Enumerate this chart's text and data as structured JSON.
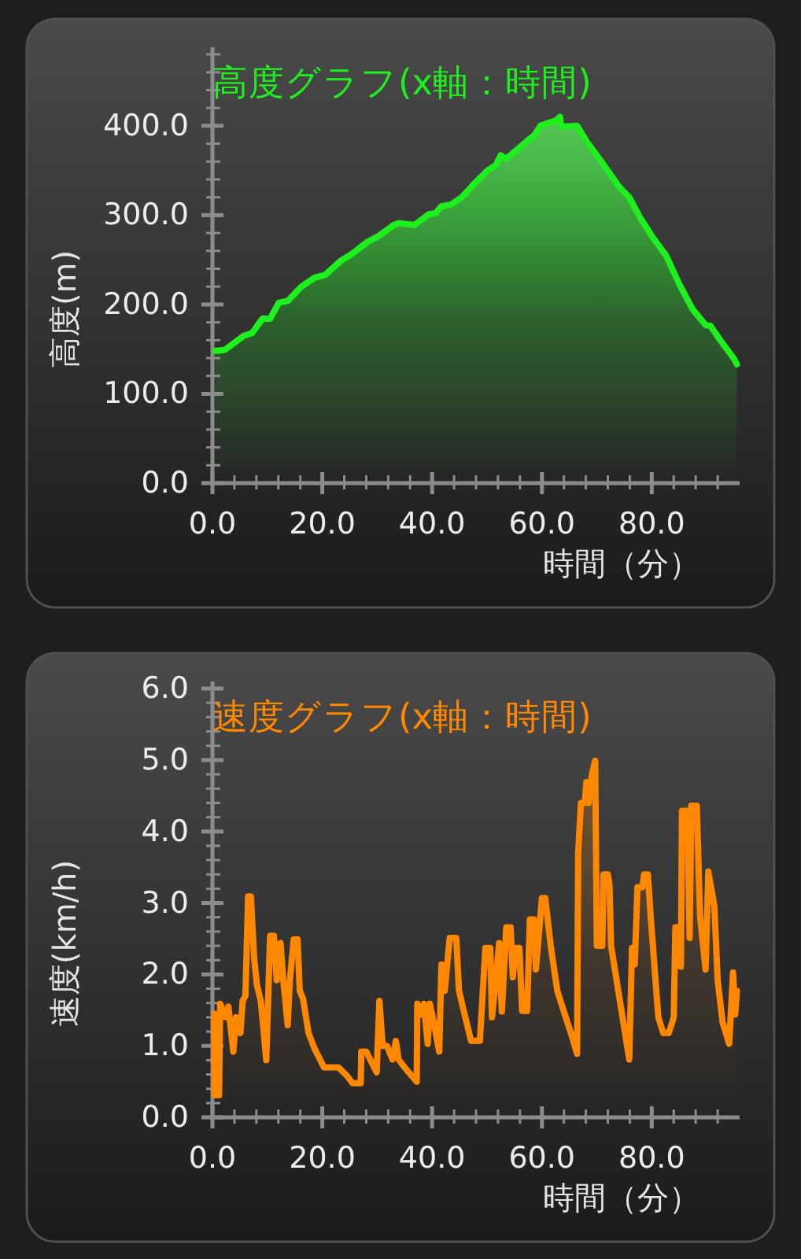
{
  "chart_data": [
    {
      "type": "area",
      "title": "高度グラフ(x軸：時間)",
      "xlabel": "時間（分）",
      "ylabel": "高度(m)",
      "xlim": [
        0,
        96
      ],
      "ylim": [
        0,
        488
      ],
      "xticks": [
        {
          "value": 0,
          "label": "0.0"
        },
        {
          "value": 4,
          "label": null
        },
        {
          "value": 8,
          "label": null
        },
        {
          "value": 12,
          "label": null
        },
        {
          "value": 16,
          "label": null
        },
        {
          "value": 20,
          "label": "20.0"
        },
        {
          "value": 24,
          "label": null
        },
        {
          "value": 28,
          "label": null
        },
        {
          "value": 32,
          "label": null
        },
        {
          "value": 36,
          "label": null
        },
        {
          "value": 40,
          "label": "40.0"
        },
        {
          "value": 44,
          "label": null
        },
        {
          "value": 48,
          "label": null
        },
        {
          "value": 52,
          "label": null
        },
        {
          "value": 56,
          "label": null
        },
        {
          "value": 60,
          "label": "60.0"
        },
        {
          "value": 64,
          "label": null
        },
        {
          "value": 68,
          "label": null
        },
        {
          "value": 72,
          "label": null
        },
        {
          "value": 76,
          "label": null
        },
        {
          "value": 80,
          "label": "80.0"
        },
        {
          "value": 84,
          "label": null
        },
        {
          "value": 88,
          "label": null
        },
        {
          "value": 92,
          "label": null
        }
      ],
      "yticks": [
        {
          "value": 0,
          "label": "0.0"
        },
        {
          "value": 20,
          "label": null
        },
        {
          "value": 40,
          "label": null
        },
        {
          "value": 60,
          "label": null
        },
        {
          "value": 80,
          "label": null
        },
        {
          "value": 100,
          "label": "100.0"
        },
        {
          "value": 120,
          "label": null
        },
        {
          "value": 140,
          "label": null
        },
        {
          "value": 160,
          "label": null
        },
        {
          "value": 180,
          "label": null
        },
        {
          "value": 200,
          "label": "200.0"
        },
        {
          "value": 220,
          "label": null
        },
        {
          "value": 240,
          "label": null
        },
        {
          "value": 260,
          "label": null
        },
        {
          "value": 280,
          "label": null
        },
        {
          "value": 300,
          "label": "300.0"
        },
        {
          "value": 320,
          "label": null
        },
        {
          "value": 340,
          "label": null
        },
        {
          "value": 360,
          "label": null
        },
        {
          "value": 380,
          "label": null
        },
        {
          "value": 400,
          "label": "400.0"
        },
        {
          "value": 420,
          "label": null
        },
        {
          "value": 440,
          "label": null
        },
        {
          "value": 460,
          "label": null
        },
        {
          "value": 480,
          "label": null
        }
      ],
      "x": [
        0.5,
        2.2,
        5.7,
        7.2,
        9.1,
        10.5,
        12.1,
        13.7,
        16.2,
        18.6,
        20.5,
        23.4,
        25.5,
        28.2,
        30.1,
        33.0,
        33.9,
        36.8,
        39.4,
        40.6,
        41.7,
        43.5,
        45.4,
        47.8,
        50.1,
        51.6,
        52.5,
        53.5,
        55.4,
        57.3,
        58.7,
        59.7,
        61.1,
        62.6,
        63.3,
        63.5,
        66.4,
        68.3,
        70.7,
        72.1,
        74.0,
        75.9,
        77.8,
        80.2,
        82.6,
        85.0,
        87.4,
        89.8,
        90.7,
        92.6,
        95.0,
        95.5
      ],
      "series": [
        {
          "color": "#1ef01e",
          "values": [
            148,
            149,
            165,
            168,
            184,
            184,
            202,
            204,
            220,
            230,
            233,
            249,
            257,
            270,
            276,
            289,
            291,
            289,
            301,
            302,
            310,
            312,
            320,
            336,
            350,
            356,
            367,
            363,
            373,
            383,
            390,
            400,
            403,
            406,
            410,
            399,
            400,
            381,
            361,
            349,
            332,
            320,
            298,
            275,
            255,
            223,
            195,
            177,
            176,
            159,
            139,
            133
          ]
        }
      ]
    },
    {
      "type": "area",
      "title": "速度グラフ(x軸：時間)",
      "xlabel": "時間（分）",
      "ylabel": "速度(km/h)",
      "xlim": [
        0,
        96
      ],
      "ylim": [
        0,
        6.1
      ],
      "xticks": [
        {
          "value": 0,
          "label": "0.0"
        },
        {
          "value": 4,
          "label": null
        },
        {
          "value": 8,
          "label": null
        },
        {
          "value": 12,
          "label": null
        },
        {
          "value": 16,
          "label": null
        },
        {
          "value": 20,
          "label": "20.0"
        },
        {
          "value": 24,
          "label": null
        },
        {
          "value": 28,
          "label": null
        },
        {
          "value": 32,
          "label": null
        },
        {
          "value": 36,
          "label": null
        },
        {
          "value": 40,
          "label": "40.0"
        },
        {
          "value": 44,
          "label": null
        },
        {
          "value": 48,
          "label": null
        },
        {
          "value": 52,
          "label": null
        },
        {
          "value": 56,
          "label": null
        },
        {
          "value": 60,
          "label": "60.0"
        },
        {
          "value": 64,
          "label": null
        },
        {
          "value": 68,
          "label": null
        },
        {
          "value": 72,
          "label": null
        },
        {
          "value": 76,
          "label": null
        },
        {
          "value": 80,
          "label": "80.0"
        },
        {
          "value": 84,
          "label": null
        },
        {
          "value": 88,
          "label": null
        },
        {
          "value": 92,
          "label": null
        }
      ],
      "yticks": [
        {
          "value": 0,
          "label": "0.0"
        },
        {
          "value": 0.2,
          "label": null
        },
        {
          "value": 0.4,
          "label": null
        },
        {
          "value": 0.6,
          "label": null
        },
        {
          "value": 0.8,
          "label": null
        },
        {
          "value": 1,
          "label": "1.0"
        },
        {
          "value": 1.2,
          "label": null
        },
        {
          "value": 1.4,
          "label": null
        },
        {
          "value": 1.6,
          "label": null
        },
        {
          "value": 1.8,
          "label": null
        },
        {
          "value": 2,
          "label": "2.0"
        },
        {
          "value": 2.2,
          "label": null
        },
        {
          "value": 2.4,
          "label": null
        },
        {
          "value": 2.6,
          "label": null
        },
        {
          "value": 2.8,
          "label": null
        },
        {
          "value": 3,
          "label": "3.0"
        },
        {
          "value": 3.2,
          "label": null
        },
        {
          "value": 3.4,
          "label": null
        },
        {
          "value": 3.6,
          "label": null
        },
        {
          "value": 3.8,
          "label": null
        },
        {
          "value": 4,
          "label": "4.0"
        },
        {
          "value": 4.2,
          "label": null
        },
        {
          "value": 4.4,
          "label": null
        },
        {
          "value": 4.6,
          "label": null
        },
        {
          "value": 4.8,
          "label": null
        },
        {
          "value": 5,
          "label": "5.0"
        },
        {
          "value": 5.2,
          "label": null
        },
        {
          "value": 5.4,
          "label": null
        },
        {
          "value": 5.6,
          "label": null
        },
        {
          "value": 5.8,
          "label": null
        },
        {
          "value": 6,
          "label": "6.0"
        }
      ],
      "x": [
        0.3,
        0.4,
        1.2,
        1.4,
        2.4,
        2.9,
        3.8,
        4.3,
        5.1,
        5.5,
        6.0,
        6.5,
        7.0,
        7.6,
        8.1,
        8.8,
        9.8,
        10.5,
        11.2,
        11.7,
        12.4,
        12.9,
        13.7,
        14.1,
        14.8,
        15.5,
        15.9,
        16.5,
        17.5,
        18.6,
        20.3,
        22.9,
        24.4,
        25.5,
        27.0,
        27.1,
        28.0,
        29.9,
        30.4,
        31.0,
        31.8,
        32.8,
        33.4,
        33.9,
        35.3,
        37.2,
        37.3,
        37.9,
        38.5,
        39.2,
        39.6,
        40.4,
        41.3,
        41.7,
        42.3,
        43.2,
        44.4,
        44.9,
        45.8,
        47.1,
        48.7,
        49.7,
        50.6,
        50.9,
        51.6,
        52.2,
        52.7,
        53.5,
        54.3,
        54.7,
        55.2,
        55.9,
        56.4,
        57.3,
        57.8,
        58.5,
        58.9,
        60.0,
        60.6,
        61.6,
        62.8,
        64.0,
        65.4,
        66.4,
        66.6,
        67.1,
        67.8,
        68.1,
        68.5,
        69.1,
        69.7,
        70.0,
        71.0,
        71.2,
        72.0,
        72.3,
        72.6,
        75.9,
        76.4,
        76.9,
        77.4,
        78.3,
        78.6,
        79.3,
        79.8,
        81.2,
        82.1,
        83.1,
        84.0,
        84.3,
        85.0,
        85.3,
        85.5,
        86.5,
        86.9,
        87.2,
        88.2,
        88.8,
        89.8,
        90.3,
        91.4,
        92.0,
        92.9,
        94.1,
        94.8,
        95.2,
        95.5
      ],
      "series": [
        {
          "color": "#ff8800",
          "values": [
            1.45,
            0.31,
            0.31,
            1.59,
            1.4,
            1.55,
            0.92,
            1.4,
            1.18,
            1.63,
            1.7,
            3.09,
            3.09,
            2.22,
            1.85,
            1.63,
            0.8,
            2.54,
            2.54,
            1.92,
            2.44,
            1.92,
            1.29,
            1.92,
            2.49,
            2.49,
            1.77,
            1.66,
            1.18,
            0.96,
            0.7,
            0.7,
            0.59,
            0.48,
            0.48,
            0.92,
            0.92,
            0.63,
            1.63,
            1.0,
            1.0,
            0.81,
            1.07,
            0.81,
            0.67,
            0.5,
            1.59,
            1.44,
            1.59,
            1.03,
            1.59,
            1.29,
            0.92,
            2.14,
            1.77,
            2.51,
            2.51,
            1.77,
            1.48,
            1.07,
            1.07,
            2.37,
            2.37,
            1.4,
            1.92,
            2.44,
            1.48,
            2.66,
            2.66,
            1.96,
            2.37,
            2.37,
            1.49,
            1.49,
            2.77,
            2.77,
            2.07,
            3.07,
            3.07,
            2.4,
            1.77,
            1.48,
            1.15,
            0.89,
            3.7,
            4.4,
            4.4,
            4.69,
            4.4,
            4.8,
            4.99,
            2.4,
            2.4,
            3.4,
            3.4,
            3.25,
            2.4,
            0.81,
            2.37,
            2.14,
            3.22,
            3.22,
            3.4,
            3.4,
            2.81,
            1.4,
            1.18,
            1.18,
            1.4,
            2.66,
            2.66,
            2.11,
            4.29,
            4.29,
            2.51,
            4.36,
            4.36,
            2.81,
            2.07,
            3.44,
            2.96,
            1.92,
            1.33,
            1.03,
            2.03,
            1.44,
            1.77
          ]
        }
      ]
    }
  ]
}
